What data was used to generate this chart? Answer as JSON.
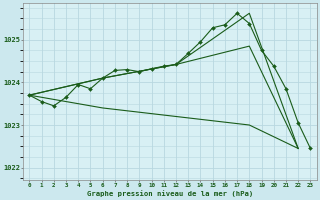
{
  "title": "Graphe pression niveau de la mer (hPa)",
  "background_color": "#cce8ee",
  "plot_bg_color": "#d8f0f4",
  "grid_color": "#b8d8e0",
  "line_color": "#1a5c1a",
  "xlim": [
    -0.5,
    23.5
  ],
  "ylim": [
    1021.7,
    1025.85
  ],
  "yticks": [
    1022,
    1023,
    1024,
    1025
  ],
  "xticks": [
    0,
    1,
    2,
    3,
    4,
    5,
    6,
    7,
    8,
    9,
    10,
    11,
    12,
    13,
    14,
    15,
    16,
    17,
    18,
    19,
    20,
    21,
    22,
    23
  ],
  "series1_x": [
    0,
    1,
    2,
    3,
    4,
    5,
    6,
    7,
    8,
    9,
    10,
    11,
    12,
    13,
    14,
    15,
    16,
    17,
    18,
    19,
    20,
    21,
    22,
    23
  ],
  "series1_y": [
    1023.7,
    1023.55,
    1023.45,
    1023.65,
    1023.95,
    1023.85,
    1024.1,
    1024.28,
    1024.3,
    1024.25,
    1024.32,
    1024.38,
    1024.42,
    1024.68,
    1024.95,
    1025.28,
    1025.35,
    1025.62,
    1025.38,
    1024.75,
    1024.38,
    1023.85,
    1023.05,
    1022.45
  ],
  "series2_x": [
    0,
    6,
    12,
    18,
    22
  ],
  "series2_y": [
    1023.7,
    1024.1,
    1024.42,
    1025.62,
    1022.45
  ],
  "series3_x": [
    0,
    6,
    12,
    18,
    22
  ],
  "series3_y": [
    1023.7,
    1024.1,
    1024.42,
    1024.85,
    1022.45
  ],
  "series4_x": [
    0,
    6,
    12,
    18,
    22
  ],
  "series4_y": [
    1023.7,
    1023.4,
    1023.2,
    1023.0,
    1022.45
  ]
}
